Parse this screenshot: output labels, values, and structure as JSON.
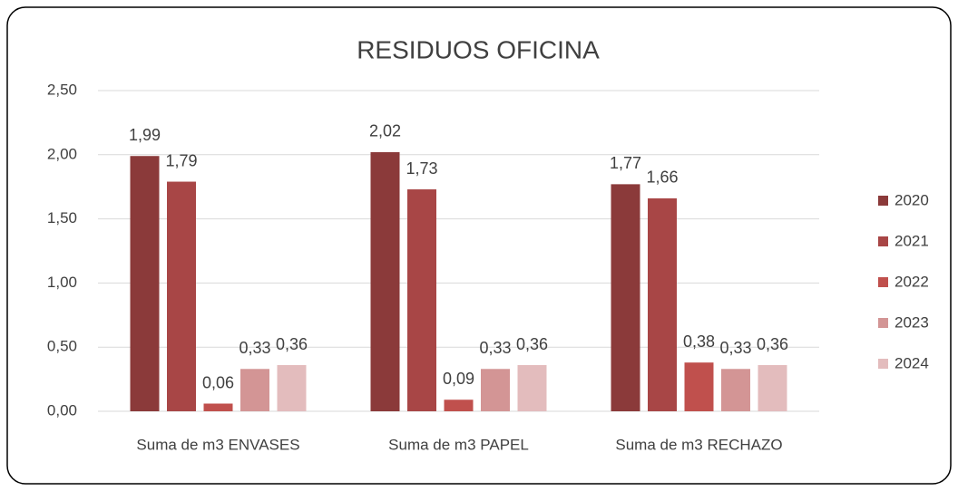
{
  "chart_data": {
    "type": "bar",
    "title": "RESIDUOS OFICINA",
    "categories": [
      "Suma de m3 ENVASES",
      "Suma de m3 PAPEL",
      "Suma de m3 RECHAZO"
    ],
    "series": [
      {
        "name": "2020",
        "color": "#8b3a3a",
        "values": [
          1.99,
          2.02,
          1.77
        ],
        "value_labels": [
          "1,99",
          "2,02",
          "1,77"
        ]
      },
      {
        "name": "2021",
        "color": "#a84646",
        "values": [
          1.79,
          1.73,
          1.66
        ],
        "value_labels": [
          "1,79",
          "1,73",
          "1,66"
        ]
      },
      {
        "name": "2022",
        "color": "#c0504d",
        "values": [
          0.06,
          0.09,
          0.38
        ],
        "value_labels": [
          "0,06",
          "0,09",
          "0,38"
        ]
      },
      {
        "name": "2023",
        "color": "#d39595",
        "values": [
          0.33,
          0.33,
          0.33
        ],
        "value_labels": [
          "0,33",
          "0,33",
          "0,33"
        ]
      },
      {
        "name": "2024",
        "color": "#e3bcbd",
        "values": [
          0.36,
          0.36,
          0.36
        ],
        "value_labels": [
          "0,36",
          "0,36",
          "0,36"
        ]
      }
    ],
    "ylim": [
      0,
      2.5
    ],
    "yticks": [
      {
        "value": 0,
        "label": "0,00"
      },
      {
        "value": 0.5,
        "label": "0,50"
      },
      {
        "value": 1,
        "label": "1,00"
      },
      {
        "value": 1.5,
        "label": "1,50"
      },
      {
        "value": 2,
        "label": "2,00"
      },
      {
        "value": 2.5,
        "label": "2,50"
      }
    ],
    "grid": true,
    "legend": "right"
  }
}
